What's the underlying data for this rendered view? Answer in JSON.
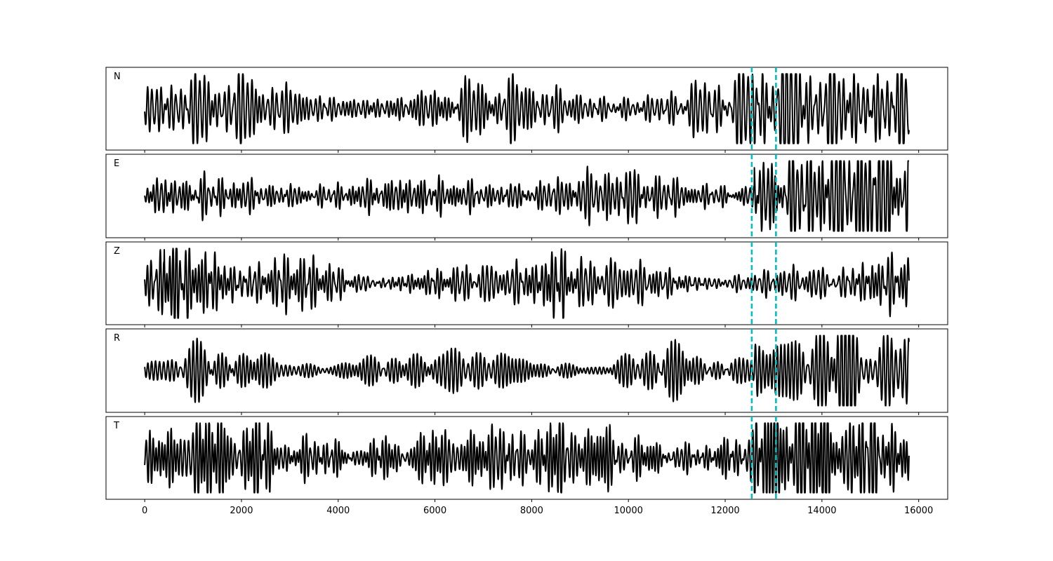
{
  "chart_data": {
    "type": "line",
    "title": "",
    "xlabel": "",
    "ylabel": "",
    "xlim": [
      -800,
      16600
    ],
    "x_ticks": [
      0,
      2000,
      4000,
      6000,
      8000,
      10000,
      12000,
      14000,
      16000
    ],
    "n_samples": 15800,
    "grid": false,
    "legend": "none",
    "markers": [
      {
        "x": 12550,
        "color": "#00bfbf",
        "style": "dashed"
      },
      {
        "x": 13050,
        "color": "#00bfbf",
        "style": "dashed"
      }
    ],
    "series": [
      {
        "name": "N",
        "color": "#000000"
      },
      {
        "name": "E",
        "color": "#000000"
      },
      {
        "name": "Z",
        "color": "#000000"
      },
      {
        "name": "R",
        "color": "#000000"
      },
      {
        "name": "T",
        "color": "#000000"
      }
    ]
  }
}
